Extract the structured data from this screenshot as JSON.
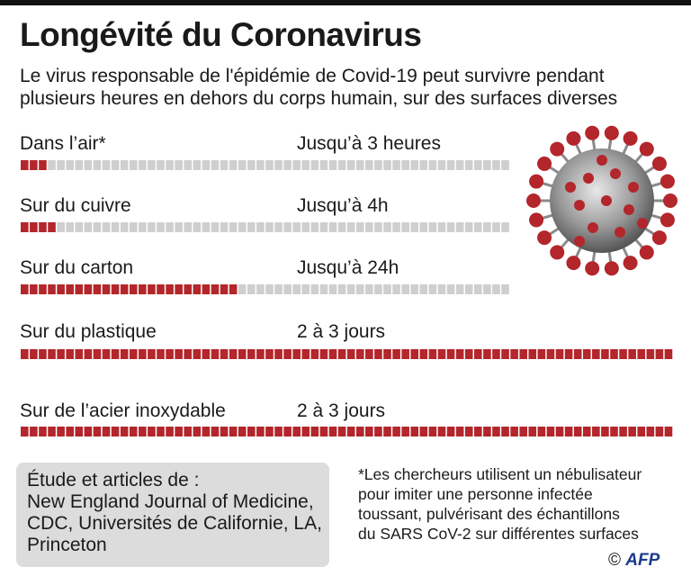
{
  "title": "Longévité du Coronavirus",
  "subtitle": "Le virus responsable de l'épidémie de Covid-19 peut survivre pendant plusieurs heures en dehors du corps humain, sur des surfaces diverses",
  "chart_data": {
    "type": "bar",
    "unit_note": "Chaque segment représente une heure (échelle de 0 à 72 h)",
    "scale_max_hours": 72,
    "categories": [
      "Dans l’air*",
      "Sur du cuivre",
      "Sur du carton",
      "Sur du plastique",
      "Sur de l’acier inoxydable"
    ],
    "duration_labels": [
      "Jusqu’à 3 heures",
      "Jusqu’à 4h",
      "Jusqu’à 24h",
      "2 à 3 jours",
      "2 à 3 jours"
    ],
    "values": [
      3,
      4,
      24,
      72,
      72
    ],
    "min_values": [
      0,
      0,
      0,
      48,
      48
    ],
    "colors": {
      "filled": "#b3262b",
      "empty": "#cfcfcf"
    }
  },
  "source": {
    "lines": [
      "Étude et articles de :",
      "New England Journal of Medicine,",
      "CDC,  Universités de Californie, LA,",
      "Princeton"
    ]
  },
  "footnote": {
    "lines": [
      "*Les chercheurs utilisent un nébulisateur",
      "pour imiter une personne infectée",
      "toussant, pulvérisant des échantillons",
      "du SARS CoV-2 sur différentes surfaces"
    ]
  },
  "credit": {
    "symbol": "©",
    "brand": "AFP"
  },
  "image_icon": "coronavirus-illustration-icon"
}
